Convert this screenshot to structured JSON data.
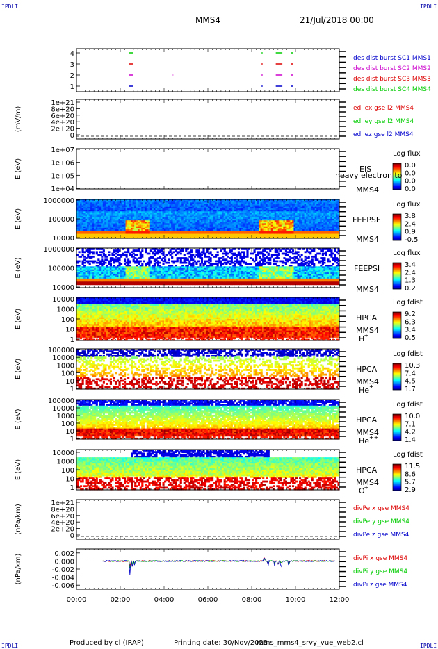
{
  "corners": {
    "tl": "IPDLI",
    "tr": "IPDLI",
    "bl": "IPDLI",
    "br": "IPDLI"
  },
  "header": {
    "spacecraft": "MMS4",
    "date": "21/Jul/2018 00:00"
  },
  "footer": {
    "producer": "Produced by cl (IRAP)",
    "printed": "Printing date: 30/Nov/2023",
    "file": "mms_mms4_srvy_vue_web2.cl"
  },
  "time_axis": {
    "ticks": [
      "00:00",
      "02:00",
      "04:00",
      "06:00",
      "08:00",
      "10:00",
      "12:00"
    ]
  },
  "colors": {
    "red": "#dd0000",
    "green": "#00cc00",
    "blue": "#0000cc",
    "magenta": "#cc00cc"
  },
  "chart_data": [
    {
      "type": "line",
      "id": "burst",
      "yticks": [
        "4",
        "3",
        "2",
        "1"
      ],
      "series": [
        {
          "name": "des dist burst SC1 MMS1",
          "color": "#0000cc",
          "row": 1,
          "intervals": [
            [
              2.4,
              2.6
            ],
            [
              8.45,
              8.5
            ],
            [
              9.1,
              9.4
            ],
            [
              9.8,
              9.9
            ]
          ]
        },
        {
          "name": "des dist burst SC2 MMS2",
          "color": "#cc00cc",
          "row": 2,
          "intervals": [
            [
              2.4,
              2.6
            ],
            [
              4.4,
              4.42
            ],
            [
              8.45,
              8.5
            ],
            [
              9.1,
              9.4
            ],
            [
              9.8,
              9.9
            ]
          ]
        },
        {
          "name": "des dist burst SC3 MMS3",
          "color": "#dd0000",
          "row": 3,
          "intervals": [
            [
              2.4,
              2.6
            ],
            [
              8.45,
              8.5
            ],
            [
              9.1,
              9.4
            ],
            [
              9.8,
              9.9
            ]
          ]
        },
        {
          "name": "des dist burst SC4 MMS4",
          "color": "#00cc00",
          "row": 4,
          "intervals": [
            [
              2.4,
              2.6
            ],
            [
              8.45,
              8.5
            ],
            [
              9.1,
              9.4
            ],
            [
              9.8,
              9.9
            ]
          ]
        }
      ]
    },
    {
      "type": "line",
      "id": "edi",
      "ylabel": "(mV/m)",
      "yticks": [
        "1e+21",
        "8e+20",
        "6e+20",
        "4e+20",
        "2e+20",
        "0"
      ],
      "series": [
        {
          "name": "edi ex gse l2 MMS4",
          "color": "#dd0000"
        },
        {
          "name": "edi ey gse l2 MMS4",
          "color": "#00cc00"
        },
        {
          "name": "edi ez gse l2 MMS4",
          "color": "#0000cc"
        }
      ]
    },
    {
      "type": "heatmap",
      "id": "eis",
      "ylabel": "E (eV)",
      "yticks": [
        "1e+07",
        "1e+06",
        "1e+05",
        "1e+04"
      ],
      "labels": [
        "EIS",
        "MMS4"
      ],
      "overlay": "heavy electron to",
      "cbar_title": "Log flux",
      "cbar_ticks": [
        "0.0",
        "0.0",
        "0.0",
        "0.0"
      ]
    },
    {
      "type": "heatmap",
      "id": "feepse",
      "ylabel": "E (eV)",
      "yticks": [
        "1000000",
        "100000",
        "10000"
      ],
      "labels": [
        "FEEPSE",
        "MMS4"
      ],
      "cbar_title": "Log flux",
      "cbar_ticks": [
        "3.8",
        "2.4",
        "0.9",
        "-0.5"
      ]
    },
    {
      "type": "heatmap",
      "id": "feepsi",
      "ylabel": "E (eV)",
      "yticks": [
        "1000000",
        "100000",
        "10000"
      ],
      "labels": [
        "FEEPSI",
        "MMS4"
      ],
      "cbar_title": "Log flux",
      "cbar_ticks": [
        "3.4",
        "2.4",
        "1.3",
        "0.2"
      ]
    },
    {
      "type": "heatmap",
      "id": "hpca_h",
      "ylabel": "E (eV)",
      "yticks": [
        "10000",
        "1000",
        "100",
        "10",
        "1"
      ],
      "labels": [
        "HPCA",
        "MMS4"
      ],
      "species": "H",
      "charge": "+",
      "cbar_title": "Log fdist",
      "cbar_ticks": [
        "9.2",
        "6.3",
        "3.4",
        "0.5"
      ]
    },
    {
      "type": "heatmap",
      "id": "hpca_he",
      "ylabel": "E (eV)",
      "yticks": [
        "100000",
        "10000",
        "1000",
        "100",
        "10",
        "1"
      ],
      "labels": [
        "HPCA",
        "MMS4"
      ],
      "species": "He",
      "charge": "+",
      "cbar_title": "Log fdist",
      "cbar_ticks": [
        "10.3",
        "7.4",
        "4.5",
        "1.7"
      ]
    },
    {
      "type": "heatmap",
      "id": "hpca_hepp",
      "ylabel": "E (eV)",
      "yticks": [
        "100000",
        "10000",
        "1000",
        "100",
        "10",
        "1"
      ],
      "labels": [
        "HPCA",
        "MMS4"
      ],
      "species": "He",
      "charge": "++",
      "cbar_title": "Log fdist",
      "cbar_ticks": [
        "10.0",
        "7.1",
        "4.2",
        "1.4"
      ]
    },
    {
      "type": "heatmap",
      "id": "hpca_o",
      "ylabel": "E (eV)",
      "yticks": [
        "10000",
        "1000",
        "100",
        "10",
        "1"
      ],
      "labels": [
        "HPCA",
        "MMS4"
      ],
      "species": "O",
      "charge": "+",
      "cbar_title": "Log fdist",
      "cbar_ticks": [
        "11.5",
        "8.6",
        "5.7",
        "2.9"
      ]
    },
    {
      "type": "line",
      "id": "divpe",
      "ylabel": "(nPa/km)",
      "yticks": [
        "1e+21",
        "8e+20",
        "6e+20",
        "4e+20",
        "2e+20",
        "0"
      ],
      "series": [
        {
          "name": "divPe x gse MMS4",
          "color": "#dd0000"
        },
        {
          "name": "divPe y gse MMS4",
          "color": "#00cc00"
        },
        {
          "name": "divPe z gse MMS4",
          "color": "#0000cc"
        }
      ]
    },
    {
      "type": "line",
      "id": "divpi",
      "ylabel": "(nPa/km)",
      "yticks": [
        "0.002",
        "0.000",
        "-0.002",
        "-0.004",
        "-0.006"
      ],
      "ylim": [
        -0.007,
        0.003
      ],
      "series": [
        {
          "name": "divPi x gse MMS4",
          "color": "#dd0000"
        },
        {
          "name": "divPi y gse MMS4",
          "color": "#00cc00"
        },
        {
          "name": "divPi z gse MMS4",
          "color": "#0000cc"
        }
      ]
    }
  ]
}
